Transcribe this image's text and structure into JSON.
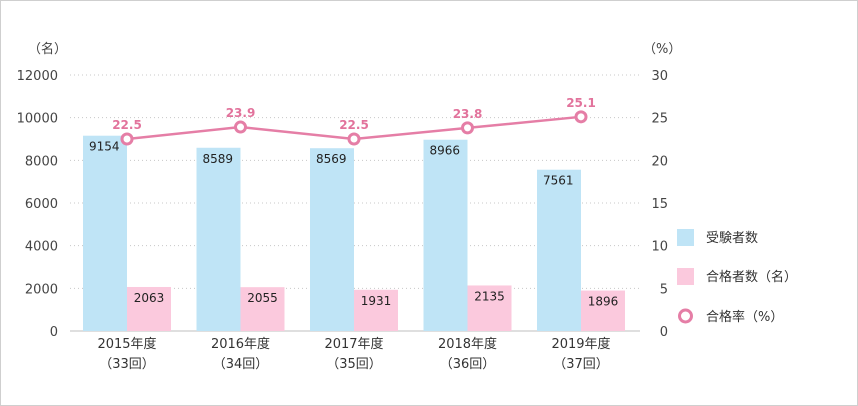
{
  "chart_data": {
    "type": "bar",
    "left_unit": "（名）",
    "right_unit": "（%）",
    "categories": [
      {
        "year": "2015年度",
        "round": "（33回）"
      },
      {
        "year": "2016年度",
        "round": "（34回）"
      },
      {
        "year": "2017年度",
        "round": "（35回）"
      },
      {
        "year": "2018年度",
        "round": "（36回）"
      },
      {
        "year": "2019年度",
        "round": "（37回）"
      }
    ],
    "series": [
      {
        "name": "受験者数",
        "kind": "bar",
        "axis": "left",
        "color": "#bfe4f6",
        "values": [
          9154,
          8589,
          8569,
          8966,
          7561
        ]
      },
      {
        "name": "合格者数（名）",
        "kind": "bar",
        "axis": "left",
        "color": "#fbc9dd",
        "values": [
          2063,
          2055,
          1931,
          2135,
          1896
        ]
      },
      {
        "name": "合格率（%）",
        "kind": "line",
        "axis": "right",
        "color": "#e57ea6",
        "values": [
          22.5,
          23.9,
          22.5,
          23.8,
          25.1
        ]
      }
    ],
    "left_ylim": [
      0,
      12000
    ],
    "left_ticks": [
      0,
      2000,
      4000,
      6000,
      8000,
      10000,
      12000
    ],
    "right_ylim": [
      0,
      30
    ],
    "right_ticks": [
      0,
      5,
      10,
      15,
      20,
      25,
      30
    ],
    "grid": true,
    "legend_position": "right"
  }
}
